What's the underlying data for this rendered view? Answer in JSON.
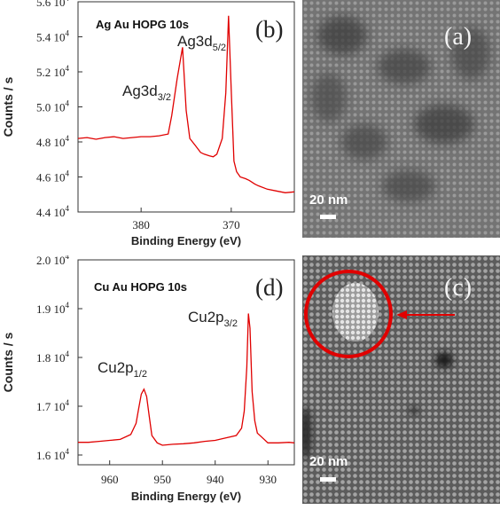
{
  "chart_data": [
    {
      "type": "line",
      "title": "Ag Au HOPG 10s",
      "panel_letter": "(b)",
      "xlabel": "Binding Energy (eV)",
      "ylabel": "Counts / s",
      "xlim": [
        387,
        363
      ],
      "ylim": [
        44000,
        56000
      ],
      "x_ticks": [
        380,
        370
      ],
      "y_ticks": [
        {
          "value": 44000,
          "mantissa": "4.4",
          "exp": "4"
        },
        {
          "value": 46000,
          "mantissa": "4.6",
          "exp": "4"
        },
        {
          "value": 48000,
          "mantissa": "4.8",
          "exp": "4"
        },
        {
          "value": 50000,
          "mantissa": "5.0",
          "exp": "4"
        },
        {
          "value": 52000,
          "mantissa": "5.2",
          "exp": "4"
        },
        {
          "value": 54000,
          "mantissa": "5.4",
          "exp": "4"
        },
        {
          "value": 56000,
          "mantissa": "5.6",
          "exp": "4"
        }
      ],
      "y_tick_base": "10",
      "line_color": "#e00000",
      "series": [
        {
          "x": [
            387,
            386,
            385,
            384,
            383,
            382,
            381,
            380,
            379,
            378,
            377,
            376.6,
            376,
            375.4,
            375,
            374.6,
            374,
            373.4,
            373,
            372.4,
            372,
            371.6,
            371,
            370.6,
            370.3,
            370,
            369.7,
            369.4,
            369,
            368.4,
            368,
            367.4,
            367,
            366,
            365,
            364,
            363
          ],
          "y": [
            48200,
            48250,
            48150,
            48250,
            48300,
            48200,
            48250,
            48300,
            48300,
            48350,
            48450,
            49500,
            51600,
            53400,
            49800,
            48200,
            47800,
            47400,
            47300,
            47200,
            47150,
            47300,
            48200,
            50800,
            55200,
            51000,
            46900,
            46300,
            46000,
            45900,
            45800,
            45600,
            45500,
            45300,
            45200,
            45100,
            45150
          ]
        }
      ],
      "annotations": [
        {
          "base": "Ag3d",
          "sub": "3/2"
        },
        {
          "base": "Ag3d",
          "sub": "5/2"
        }
      ]
    },
    {
      "type": "line",
      "title": "Cu Au HOPG 10s",
      "panel_letter": "(d)",
      "xlabel": "Binding Energy (eV)",
      "ylabel": "Counts / s",
      "xlim": [
        966,
        925
      ],
      "ylim": [
        15800,
        20000
      ],
      "x_ticks": [
        960,
        950,
        940,
        930
      ],
      "y_ticks": [
        {
          "value": 16000,
          "mantissa": "1.6",
          "exp": "4"
        },
        {
          "value": 17000,
          "mantissa": "1.7",
          "exp": "4"
        },
        {
          "value": 18000,
          "mantissa": "1.8",
          "exp": "4"
        },
        {
          "value": 19000,
          "mantissa": "1.9",
          "exp": "4"
        },
        {
          "value": 20000,
          "mantissa": "2.0",
          "exp": "4"
        }
      ],
      "y_tick_base": "10",
      "line_color": "#e00000",
      "series": [
        {
          "x": [
            966,
            964,
            962,
            960,
            958,
            956,
            955,
            954.5,
            954,
            953.5,
            953,
            952.5,
            952,
            951,
            950,
            948,
            946,
            944,
            942,
            940,
            938,
            936,
            935,
            934.5,
            934,
            933.7,
            933.4,
            933,
            932.5,
            932,
            931,
            930,
            928,
            926,
            925
          ],
          "y": [
            16260,
            16260,
            16280,
            16300,
            16320,
            16420,
            16650,
            16950,
            17250,
            17350,
            17200,
            16800,
            16400,
            16250,
            16200,
            16220,
            16230,
            16250,
            16280,
            16300,
            16350,
            16400,
            16550,
            16900,
            17800,
            18900,
            18600,
            17300,
            16700,
            16450,
            16350,
            16250,
            16250,
            16260,
            16250
          ]
        }
      ],
      "annotations": [
        {
          "base": "Cu2p",
          "sub": "1/2"
        },
        {
          "base": "Cu2p",
          "sub": "3/2"
        }
      ]
    }
  ],
  "images": [
    {
      "panel_letter": "(a)",
      "scale_label": "20 nm"
    },
    {
      "panel_letter": "(c)",
      "scale_label": "20 nm"
    }
  ],
  "colors": {
    "line": "#e00000",
    "highlight": "#e00000"
  }
}
